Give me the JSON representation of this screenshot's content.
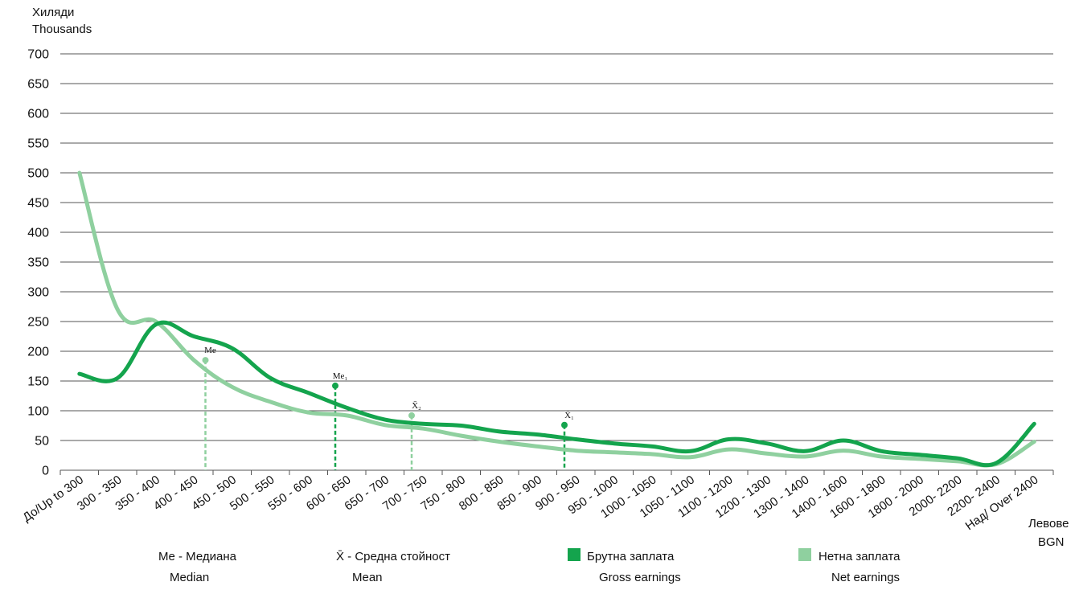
{
  "colors": {
    "gross": "#14a44d",
    "net": "#8fd09f",
    "grid": "#555555"
  },
  "chart_data": {
    "type": "line",
    "ylabel_line1": "Хиляди",
    "ylabel_line2": "Thousands",
    "xlabel_line1": "Левове",
    "xlabel_line2": "BGN",
    "ylim": [
      0,
      700
    ],
    "yticks": [
      0,
      50,
      100,
      150,
      200,
      250,
      300,
      350,
      400,
      450,
      500,
      550,
      600,
      650,
      700
    ],
    "grid": true,
    "categories": [
      "До/Up to 300",
      "300 - 350",
      "350 - 400",
      "400 - 450",
      "450 - 500",
      "500 - 550",
      "550 - 600",
      "600 - 650",
      "650 - 700",
      "700 - 750",
      "750 - 800",
      "800 - 850",
      "850 - 900",
      "900 - 950",
      "950 - 1000",
      "1000 - 1050",
      "1050 - 1100",
      "1100 - 1200",
      "1200 - 1300",
      "1300 - 1400",
      "1400 - 1600",
      "1600 - 1800",
      "1800 - 2000",
      "2000- 2200",
      "2200- 2400",
      "Над/ Over 2400"
    ],
    "series": [
      {
        "name": "Брутна заплата",
        "name_en": "Gross earnings",
        "key": "gross",
        "values": [
          162,
          155,
          245,
          225,
          205,
          155,
          130,
          105,
          85,
          78,
          75,
          65,
          60,
          52,
          45,
          40,
          32,
          52,
          45,
          32,
          50,
          32,
          26,
          20,
          12,
          78
        ]
      },
      {
        "name": "Нетна заплата",
        "name_en": "Net earnings",
        "key": "net",
        "values": [
          500,
          270,
          250,
          185,
          140,
          115,
          97,
          92,
          76,
          70,
          58,
          48,
          40,
          33,
          30,
          27,
          22,
          35,
          28,
          23,
          33,
          23,
          19,
          15,
          10,
          48
        ]
      }
    ],
    "markers": [
      {
        "label": "Me",
        "series": "net",
        "x": 3.8,
        "y": 185
      },
      {
        "label": "Me₁",
        "series": "gross",
        "x": 7.2,
        "y": 142
      },
      {
        "label": "X̄₂",
        "series": "net",
        "x": 9.2,
        "y": 92
      },
      {
        "label": "X̄₁",
        "series": "gross",
        "x": 13.2,
        "y": 76
      }
    ],
    "legend": [
      {
        "key": "median",
        "line1": "Me - Медиана",
        "line2": "Median"
      },
      {
        "key": "mean",
        "line1": "X̄ - Средна стойност",
        "line2": "Mean"
      },
      {
        "key": "gross",
        "line1": "Брутна заплата",
        "line2": "Gross earnings"
      },
      {
        "key": "net",
        "line1": "Нетна заплата",
        "line2": "Net earnings"
      }
    ]
  }
}
